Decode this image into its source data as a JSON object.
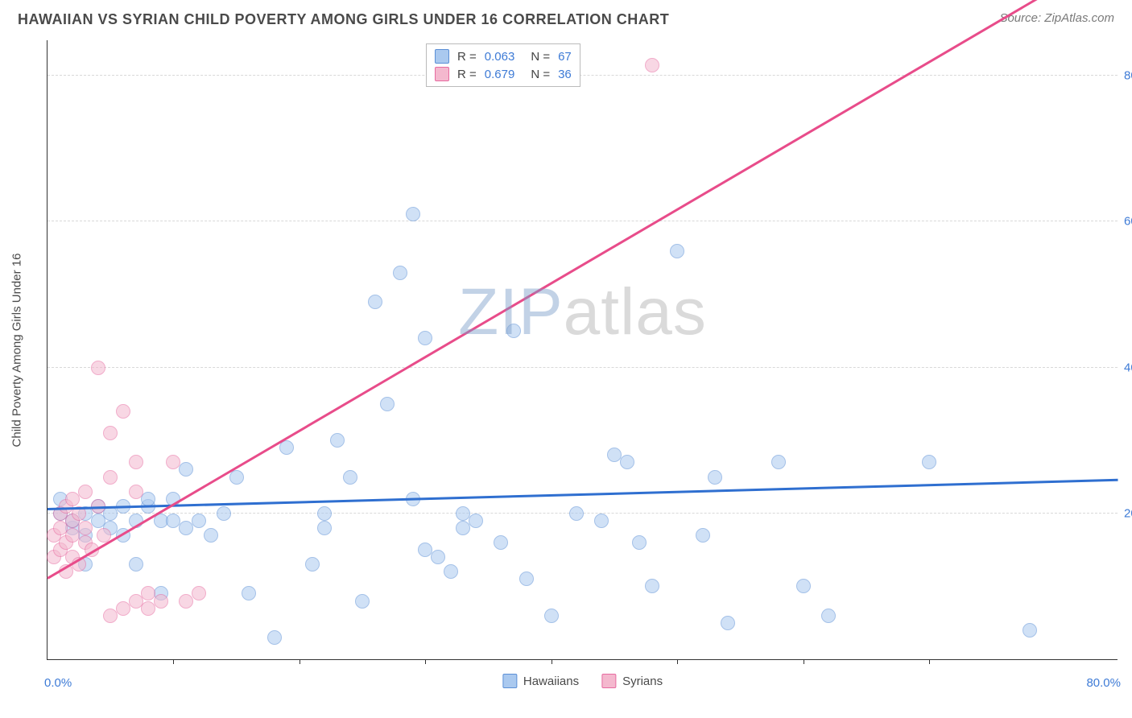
{
  "title": "HAWAIIAN VS SYRIAN CHILD POVERTY AMONG GIRLS UNDER 16 CORRELATION CHART",
  "source": "Source: ZipAtlas.com",
  "y_axis_label": "Child Poverty Among Girls Under 16",
  "watermark": {
    "part1": "ZIP",
    "part2": "atlas"
  },
  "chart": {
    "type": "scatter",
    "xlim": [
      0,
      85
    ],
    "ylim": [
      0,
      85
    ],
    "x_ticks": [
      0,
      80
    ],
    "x_minor_ticks": [
      10,
      20,
      30,
      40,
      50,
      60,
      70
    ],
    "y_ticks": [
      20,
      40,
      60,
      80
    ],
    "tick_label_suffix": "%",
    "tick_label_decimals": 1,
    "background_color": "#ffffff",
    "grid_color": "#d8d8d8",
    "axis_color": "#333333",
    "tick_label_color": "#3e7bd6",
    "point_radius": 9,
    "point_opacity": 0.55,
    "series": [
      {
        "name": "Hawaiians",
        "fill": "#aac9ef",
        "stroke": "#5b8fd6",
        "R": "0.063",
        "N": "67",
        "trend": {
          "y_at_x0": 20.5,
          "y_at_xmax": 24.5,
          "color": "#2f6fd0"
        },
        "points": [
          [
            1,
            20
          ],
          [
            1,
            22
          ],
          [
            2,
            18
          ],
          [
            2,
            19
          ],
          [
            3,
            17
          ],
          [
            3,
            20
          ],
          [
            3,
            13
          ],
          [
            4,
            19
          ],
          [
            4,
            21
          ],
          [
            5,
            18
          ],
          [
            5,
            20
          ],
          [
            6,
            17
          ],
          [
            6,
            21
          ],
          [
            7,
            19
          ],
          [
            7,
            13
          ],
          [
            8,
            21
          ],
          [
            8,
            22
          ],
          [
            9,
            19
          ],
          [
            9,
            9
          ],
          [
            10,
            19
          ],
          [
            10,
            22
          ],
          [
            11,
            18
          ],
          [
            11,
            26
          ],
          [
            12,
            19
          ],
          [
            13,
            17
          ],
          [
            14,
            20
          ],
          [
            15,
            25
          ],
          [
            16,
            9
          ],
          [
            18,
            3
          ],
          [
            19,
            29
          ],
          [
            21,
            13
          ],
          [
            22,
            18
          ],
          [
            22,
            20
          ],
          [
            23,
            30
          ],
          [
            24,
            25
          ],
          [
            25,
            8
          ],
          [
            26,
            49
          ],
          [
            27,
            35
          ],
          [
            28,
            53
          ],
          [
            29,
            22
          ],
          [
            29,
            61
          ],
          [
            30,
            15
          ],
          [
            30,
            44
          ],
          [
            31,
            14
          ],
          [
            32,
            12
          ],
          [
            33,
            18
          ],
          [
            33,
            20
          ],
          [
            34,
            19
          ],
          [
            36,
            16
          ],
          [
            37,
            45
          ],
          [
            38,
            11
          ],
          [
            40,
            6
          ],
          [
            42,
            20
          ],
          [
            44,
            19
          ],
          [
            45,
            28
          ],
          [
            46,
            27
          ],
          [
            47,
            16
          ],
          [
            48,
            10
          ],
          [
            50,
            56
          ],
          [
            52,
            17
          ],
          [
            53,
            25
          ],
          [
            54,
            5
          ],
          [
            58,
            27
          ],
          [
            60,
            10
          ],
          [
            62,
            6
          ],
          [
            70,
            27
          ],
          [
            78,
            4
          ]
        ]
      },
      {
        "name": "Syrians",
        "fill": "#f4b8ce",
        "stroke": "#e76aa0",
        "R": "0.679",
        "N": "36",
        "trend": {
          "y_at_x0": 11,
          "y_at_xmax": 97,
          "color": "#e84c8a"
        },
        "points": [
          [
            0.5,
            14
          ],
          [
            0.5,
            17
          ],
          [
            1,
            15
          ],
          [
            1,
            18
          ],
          [
            1,
            20
          ],
          [
            1.5,
            12
          ],
          [
            1.5,
            16
          ],
          [
            1.5,
            21
          ],
          [
            2,
            14
          ],
          [
            2,
            17
          ],
          [
            2,
            19
          ],
          [
            2,
            22
          ],
          [
            2.5,
            13
          ],
          [
            2.5,
            20
          ],
          [
            3,
            16
          ],
          [
            3,
            18
          ],
          [
            3,
            23
          ],
          [
            3.5,
            15
          ],
          [
            4,
            21
          ],
          [
            4,
            40
          ],
          [
            4.5,
            17
          ],
          [
            5,
            6
          ],
          [
            5,
            25
          ],
          [
            5,
            31
          ],
          [
            6,
            7
          ],
          [
            6,
            34
          ],
          [
            7,
            8
          ],
          [
            7,
            23
          ],
          [
            7,
            27
          ],
          [
            8,
            7
          ],
          [
            8,
            9
          ],
          [
            9,
            8
          ],
          [
            10,
            27
          ],
          [
            11,
            8
          ],
          [
            12,
            9
          ],
          [
            48,
            81.5
          ]
        ]
      }
    ]
  },
  "legend_bottom": [
    {
      "label": "Hawaiians",
      "fill": "#aac9ef",
      "stroke": "#5b8fd6"
    },
    {
      "label": "Syrians",
      "fill": "#f4b8ce",
      "stroke": "#e76aa0"
    }
  ]
}
